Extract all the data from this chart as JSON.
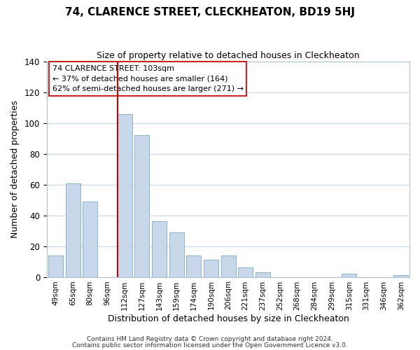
{
  "title": "74, CLARENCE STREET, CLECKHEATON, BD19 5HJ",
  "subtitle": "Size of property relative to detached houses in Cleckheaton",
  "xlabel": "Distribution of detached houses by size in Cleckheaton",
  "ylabel": "Number of detached properties",
  "bar_color": "#c8d8ea",
  "bar_edge_color": "#7aaac8",
  "categories": [
    "49sqm",
    "65sqm",
    "80sqm",
    "96sqm",
    "112sqm",
    "127sqm",
    "143sqm",
    "159sqm",
    "174sqm",
    "190sqm",
    "206sqm",
    "221sqm",
    "237sqm",
    "252sqm",
    "268sqm",
    "284sqm",
    "299sqm",
    "315sqm",
    "331sqm",
    "346sqm",
    "362sqm"
  ],
  "values": [
    14,
    61,
    49,
    0,
    106,
    92,
    36,
    29,
    14,
    11,
    14,
    6,
    3,
    0,
    0,
    0,
    0,
    2,
    0,
    0,
    1
  ],
  "vline_color": "#cc0000",
  "ylim": [
    0,
    140
  ],
  "yticks": [
    0,
    20,
    40,
    60,
    80,
    100,
    120,
    140
  ],
  "annotation_title": "74 CLARENCE STREET: 103sqm",
  "annotation_line1": "← 37% of detached houses are smaller (164)",
  "annotation_line2": "62% of semi-detached houses are larger (271) →",
  "footer1": "Contains HM Land Registry data © Crown copyright and database right 2024.",
  "footer2": "Contains public sector information licensed under the Open Government Licence v3.0.",
  "background_color": "#ffffff",
  "grid_color": "#c8d8e8"
}
